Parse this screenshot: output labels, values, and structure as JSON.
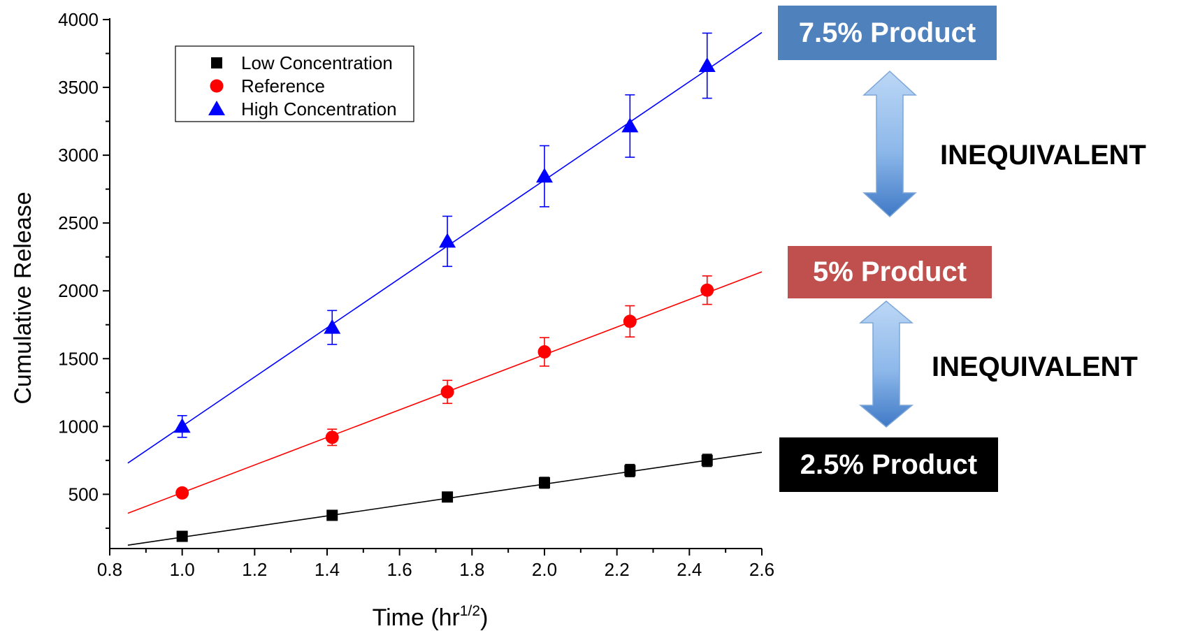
{
  "chart_data": {
    "type": "scatter",
    "xlabel": "Time (hr",
    "xlabel_sup": "1/2",
    "xlabel_close": ")",
    "ylabel": "Cumulative Release",
    "xlim": [
      0.8,
      2.6
    ],
    "ylim": [
      100,
      4000
    ],
    "xticks": [
      0.8,
      1.0,
      1.2,
      1.4,
      1.6,
      1.8,
      2.0,
      2.2,
      2.4,
      2.6
    ],
    "xtick_labels": [
      "0.8",
      "1.0",
      "1.2",
      "1.4",
      "1.6",
      "1.8",
      "2.0",
      "2.2",
      "2.4",
      "2.6"
    ],
    "yticks": [
      500,
      1000,
      1500,
      2000,
      2500,
      3000,
      3500,
      4000
    ],
    "ytick_labels": [
      "500",
      "1000",
      "1500",
      "2000",
      "2500",
      "3000",
      "3500",
      "4000"
    ],
    "grid": false,
    "legend_position": "top-left",
    "series": [
      {
        "name": "Low Concentration",
        "marker": "square",
        "color": "#000000",
        "x": [
          1.0,
          1.414,
          1.732,
          2.0,
          2.236,
          2.449
        ],
        "y": [
          190,
          345,
          480,
          585,
          675,
          750
        ],
        "err": [
          15,
          20,
          25,
          40,
          45,
          45
        ],
        "fit_x": [
          0.85,
          2.6
        ],
        "fit_y": [
          125,
          810
        ]
      },
      {
        "name": "Reference",
        "marker": "circle",
        "color": "#ff0000",
        "x": [
          1.0,
          1.414,
          1.732,
          2.0,
          2.236,
          2.449
        ],
        "y": [
          510,
          920,
          1255,
          1550,
          1775,
          2005
        ],
        "err": [
          30,
          60,
          85,
          105,
          115,
          105
        ],
        "fit_x": [
          0.85,
          2.6
        ],
        "fit_y": [
          360,
          2140
        ]
      },
      {
        "name": "High Concentration",
        "marker": "triangle",
        "color": "#0000ff",
        "x": [
          1.0,
          1.414,
          1.732,
          2.0,
          2.236,
          2.449
        ],
        "y": [
          1000,
          1730,
          2365,
          2845,
          3215,
          3660
        ],
        "err": [
          80,
          125,
          185,
          225,
          230,
          240
        ],
        "fit_x": [
          0.85,
          2.6
        ],
        "fit_y": [
          730,
          3905
        ]
      }
    ]
  },
  "annotations": {
    "top_box": {
      "label": "7.5% Product",
      "color": "#4f81bd"
    },
    "middle_box": {
      "label": "5% Product",
      "color": "#c0504d"
    },
    "bottom_box": {
      "label": "2.5% Product",
      "color": "#000000"
    },
    "upper_verdict": "INEQUIVALENT",
    "lower_verdict": "INEQUIVALENT",
    "arrow_color": "#5b9bd5"
  }
}
